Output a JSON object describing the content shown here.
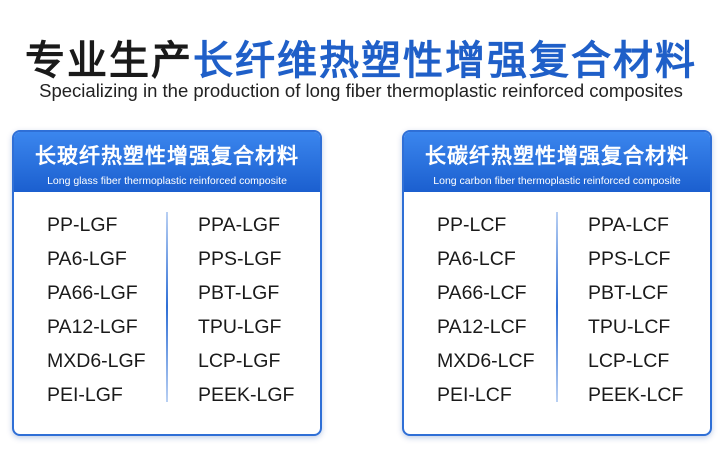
{
  "header": {
    "title_prefix": "专业生产",
    "title_highlight": "长纤维热塑性增强复合材料",
    "subtitle": "Specializing in the production of long fiber thermoplastic reinforced composites"
  },
  "cards": [
    {
      "title": "长玻纤热塑性增强复合材料",
      "subtitle": "Long glass fiber thermoplastic reinforced composite",
      "left": [
        "PP-LGF",
        "PA6-LGF",
        "PA66-LGF",
        "PA12-LGF",
        "MXD6-LGF",
        "PEI-LGF"
      ],
      "right": [
        "PPA-LGF",
        "PPS-LGF",
        "PBT-LGF",
        "TPU-LGF",
        "LCP-LGF",
        "PEEK-LGF"
      ]
    },
    {
      "title": "长碳纤热塑性增强复合材料",
      "subtitle": "Long carbon fiber thermoplastic reinforced composite",
      "left": [
        "PP-LCF",
        "PA6-LCF",
        "PA66-LCF",
        "PA12-LCF",
        "MXD6-LCF",
        "PEI-LCF"
      ],
      "right": [
        "PPA-LCF",
        "PPS-LCF",
        "PBT-LCF",
        "TPU-LCF",
        "LCP-LCF",
        "PEEK-LCF"
      ]
    }
  ]
}
